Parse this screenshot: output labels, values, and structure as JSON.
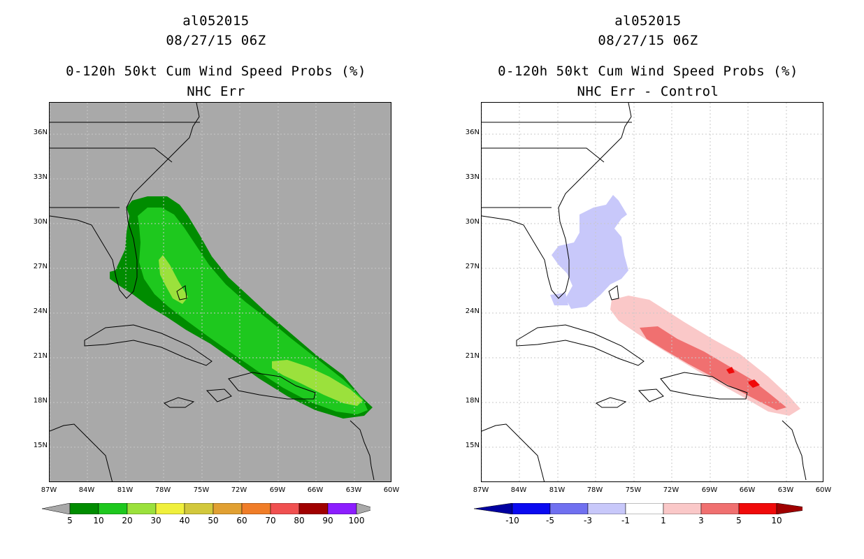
{
  "colors": {
    "land_background": "#a9a9a9",
    "coast": "#000000"
  },
  "left": {
    "storm_id": "al052015",
    "datetime": "08/27/15 06Z",
    "product": "0-120h 50kt Cum Wind Speed Probs (%)",
    "variant": "NHC Err",
    "lat_labels": [
      "36N",
      "33N",
      "30N",
      "27N",
      "24N",
      "21N",
      "18N",
      "15N"
    ],
    "lon_labels": [
      "87W",
      "84W",
      "81W",
      "78W",
      "75W",
      "72W",
      "69W",
      "66W",
      "63W",
      "60W"
    ],
    "colorbar": {
      "labels": [
        "5",
        "10",
        "20",
        "30",
        "40",
        "50",
        "60",
        "70",
        "80",
        "90",
        "100"
      ],
      "colors": [
        "#008c00",
        "#1ec81e",
        "#9be13c",
        "#f0f03c",
        "#d2c83c",
        "#e1a032",
        "#f07d28",
        "#f05050",
        "#a00000",
        "#8c1eff"
      ]
    }
  },
  "right": {
    "storm_id": "al052015",
    "datetime": "08/27/15 06Z",
    "product": "0-120h 50kt Cum Wind Speed Probs (%)",
    "variant": "NHC Err - Control",
    "lat_labels": [
      "36N",
      "33N",
      "30N",
      "27N",
      "24N",
      "21N",
      "18N",
      "15N"
    ],
    "lon_labels": [
      "87W",
      "84W",
      "81W",
      "78W",
      "75W",
      "72W",
      "69W",
      "66W",
      "63W",
      "60W"
    ],
    "colorbar": {
      "labels": [
        "-10",
        "-5",
        "-3",
        "-1",
        "1",
        "3",
        "5",
        "10"
      ],
      "colors": [
        "#0000a0",
        "#0a0af0",
        "#7070f0",
        "#c8c8fa",
        "#ffffff",
        "#fac8c8",
        "#f07070",
        "#f00a0a",
        "#a00000"
      ]
    }
  }
}
